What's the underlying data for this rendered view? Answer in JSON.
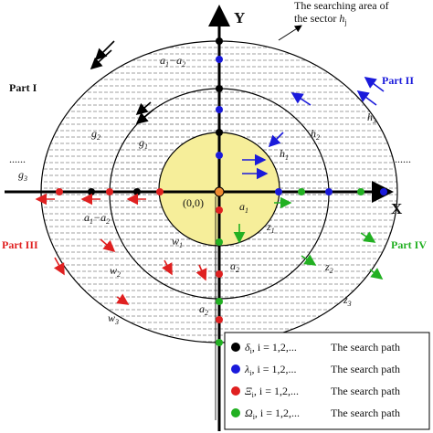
{
  "axes": {
    "x": "X",
    "y": "Y"
  },
  "annotation": {
    "line1": "The searching area of",
    "line2": "the sector ",
    "base": "h",
    "sub": "j"
  },
  "parts": {
    "one": "Part I",
    "two": "Part II",
    "three": "Part III",
    "four": "Part IV"
  },
  "dots": {
    "left": "......",
    "right": "......"
  },
  "origin": "(0,0)",
  "curves": {
    "g3": {
      "base": "g",
      "sub": "3"
    },
    "g2": {
      "base": "g",
      "sub": "2"
    },
    "g1": {
      "base": "g",
      "sub": "1"
    },
    "h1": {
      "base": "h",
      "sub": "1"
    },
    "h2": {
      "base": "h",
      "sub": "2"
    },
    "h3": {
      "base": "h",
      "sub": "3"
    },
    "z1": {
      "base": "z",
      "sub": "1"
    },
    "z2": {
      "base": "z",
      "sub": "2"
    },
    "z3": {
      "base": "z",
      "sub": "3"
    },
    "w1": {
      "base": "w",
      "sub": "1"
    },
    "w2": {
      "base": "w",
      "sub": "2"
    },
    "w3": {
      "base": "w",
      "sub": "3"
    },
    "a1": {
      "base": "a",
      "sub": "1"
    },
    "a2": {
      "base": "a",
      "sub": "2"
    },
    "a2b": {
      "base": "a",
      "sub": "2"
    }
  },
  "differences": [
    {
      "base1": "a",
      "sub1": "1",
      "op": "−",
      "base2": "a",
      "sub2": "2"
    },
    {
      "base1": "a",
      "sub1": "1",
      "op": "−",
      "base2": "a",
      "sub2": "2"
    }
  ],
  "legend": [
    {
      "symbol": "δ",
      "sub": "i",
      "index": ", i = 1,2,...",
      "text": "The  search path"
    },
    {
      "symbol": "λ",
      "sub": "i",
      "index": ", i = 1,2,...",
      "text": "The  search path"
    },
    {
      "symbol": "Ξ",
      "sub": "i",
      "index": ", i = 1,2,...",
      "text": "The  search path"
    },
    {
      "symbol": "Ω",
      "sub": "i",
      "index": ", i = 1,2,...",
      "text": "The  search path"
    }
  ]
}
